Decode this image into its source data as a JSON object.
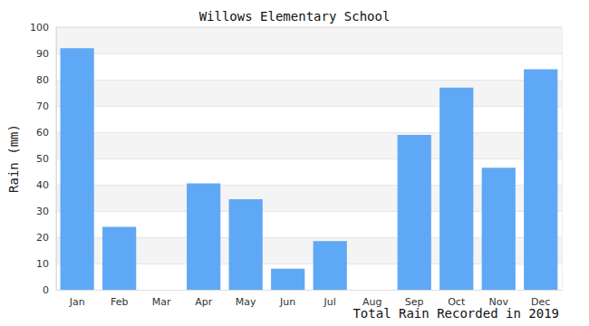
{
  "chart_data": {
    "type": "bar",
    "title": "Willows Elementary School",
    "x_label": "Total Rain Recorded in 2019",
    "y_label": "Rain (mm)",
    "categories": [
      "Jan",
      "Feb",
      "Mar",
      "Apr",
      "May",
      "Jun",
      "Jul",
      "Aug",
      "Sep",
      "Oct",
      "Nov",
      "Dec"
    ],
    "values": [
      92,
      24,
      0,
      40.5,
      34.5,
      8,
      18.5,
      0,
      59,
      77,
      46.5,
      84
    ],
    "color": "#5fa8f5",
    "ylim": [
      0,
      100
    ],
    "yticks": [
      0,
      10,
      20,
      30,
      40,
      50,
      60,
      70,
      80,
      90,
      100
    ],
    "grid": true
  }
}
